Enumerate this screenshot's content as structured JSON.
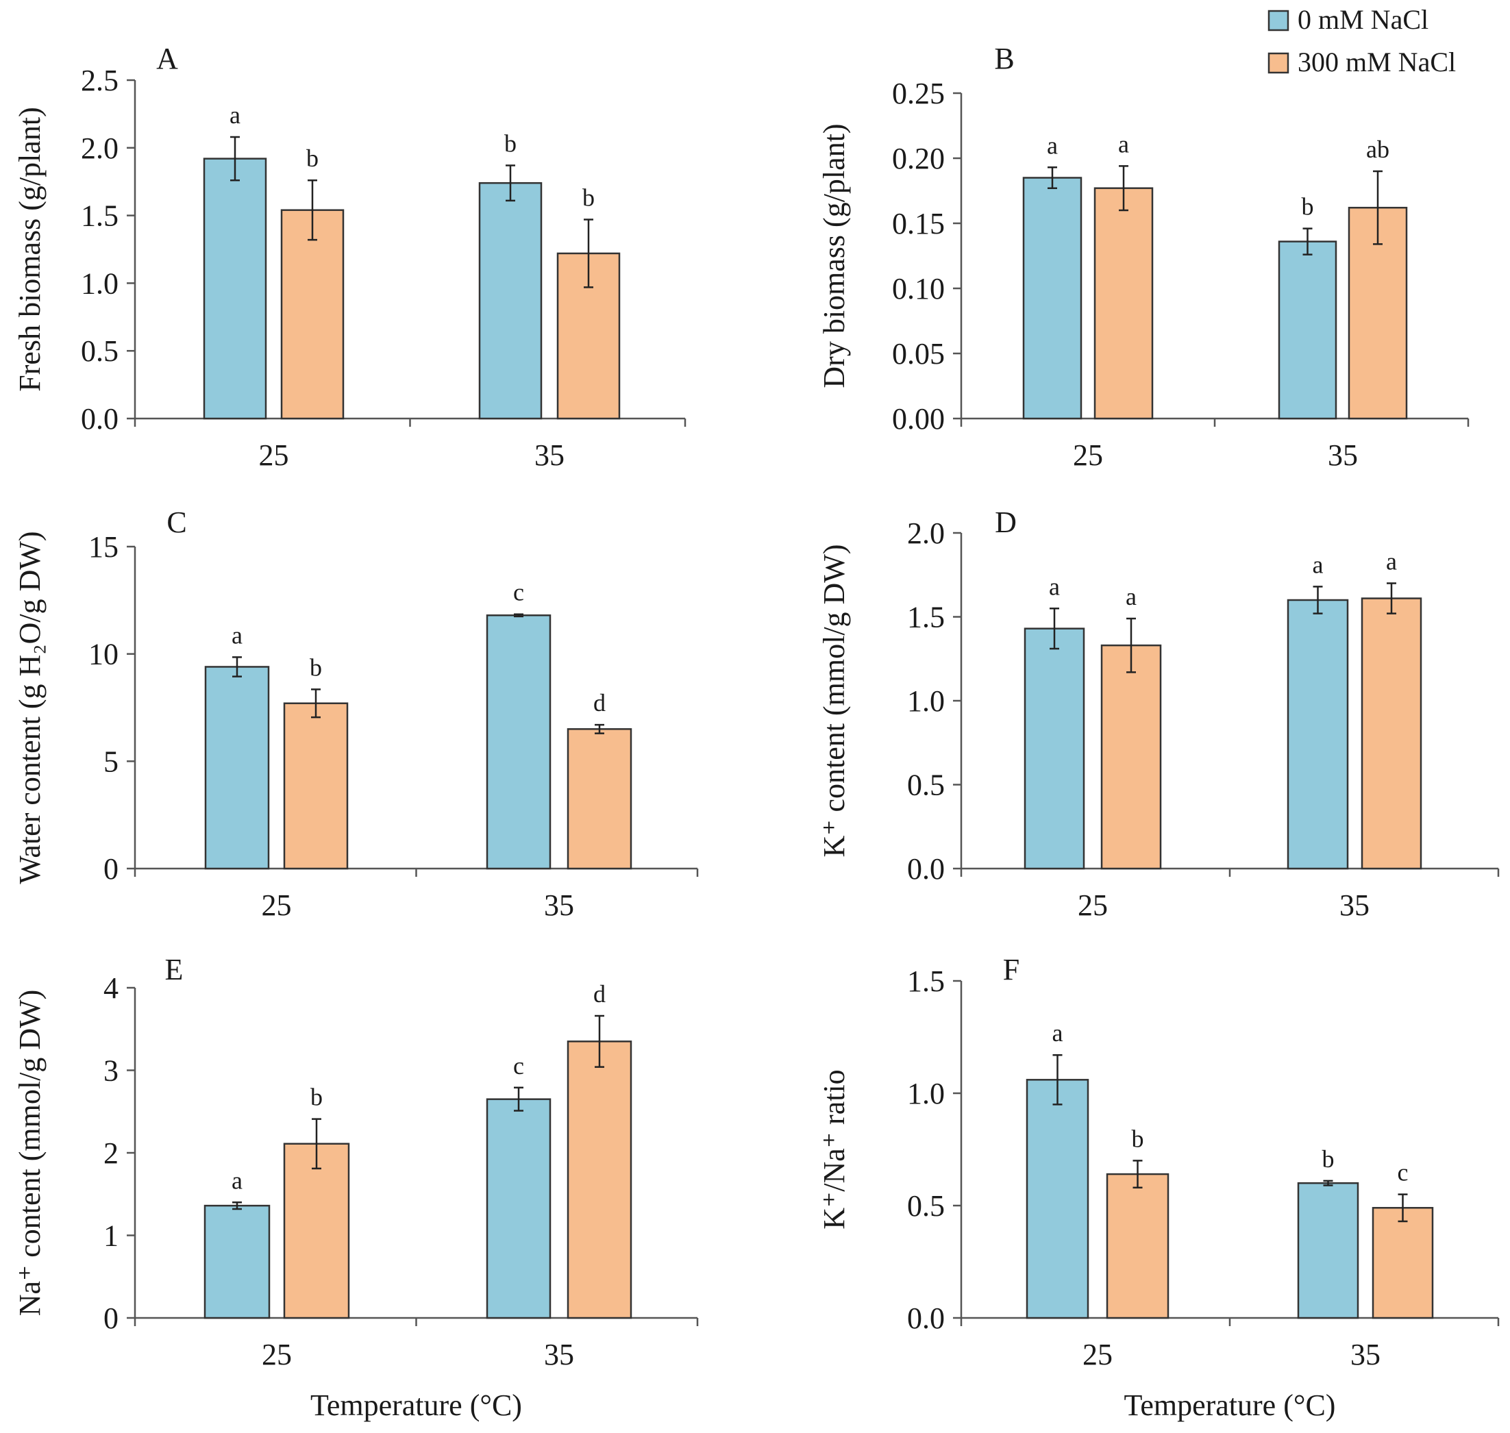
{
  "legend": {
    "entries": [
      {
        "label": "0 mM NaCl",
        "color": "#92cadc"
      },
      {
        "label": "300 mM NaCl",
        "color": "#f7bd8e"
      }
    ]
  },
  "chart_data": [
    {
      "type": "bar",
      "panel": "A",
      "ylabel": "Fresh biomass (g/plant)",
      "xlabel": "",
      "categories": [
        "25",
        "35"
      ],
      "ylim": [
        0,
        2.5
      ],
      "yticks": [
        "0.0",
        "0.5",
        "1.0",
        "1.5",
        "2.0",
        "2.5"
      ],
      "series": [
        {
          "name": "0 mM NaCl",
          "values": [
            1.92,
            1.74
          ],
          "errors": [
            0.16,
            0.13
          ],
          "letters": [
            "a",
            "b"
          ]
        },
        {
          "name": "300 mM NaCl",
          "values": [
            1.54,
            1.22
          ],
          "errors": [
            0.22,
            0.25
          ],
          "letters": [
            "b",
            "b"
          ]
        }
      ]
    },
    {
      "type": "bar",
      "panel": "B",
      "ylabel": "Dry biomass (g/plant)",
      "xlabel": "",
      "categories": [
        "25",
        "35"
      ],
      "ylim": [
        0,
        0.25
      ],
      "yticks": [
        "0.00",
        "0.05",
        "0.10",
        "0.15",
        "0.20",
        "0.25"
      ],
      "series": [
        {
          "name": "0 mM NaCl",
          "values": [
            0.185,
            0.136
          ],
          "errors": [
            0.008,
            0.01
          ],
          "letters": [
            "a",
            "b"
          ]
        },
        {
          "name": "300 mM NaCl",
          "values": [
            0.177,
            0.162
          ],
          "errors": [
            0.017,
            0.028
          ],
          "letters": [
            "a",
            "ab"
          ]
        }
      ]
    },
    {
      "type": "bar",
      "panel": "C",
      "ylabel": "Water content (g H₂O/g DW)",
      "xlabel": "",
      "categories": [
        "25",
        "35"
      ],
      "ylim": [
        0,
        15
      ],
      "yticks": [
        "0",
        "5",
        "10",
        "15"
      ],
      "series": [
        {
          "name": "0 mM NaCl",
          "values": [
            9.4,
            11.8
          ],
          "errors": [
            0.45,
            0.05
          ],
          "letters": [
            "a",
            "c"
          ]
        },
        {
          "name": "300 mM NaCl",
          "values": [
            7.7,
            6.5
          ],
          "errors": [
            0.65,
            0.2
          ],
          "letters": [
            "b",
            "d"
          ]
        }
      ]
    },
    {
      "type": "bar",
      "panel": "D",
      "ylabel": "K⁺ content (mmol/g DW)",
      "xlabel": "",
      "categories": [
        "25",
        "35"
      ],
      "ylim": [
        0,
        2.0
      ],
      "yticks": [
        "0.0",
        "0.5",
        "1.0",
        "1.5",
        "2.0"
      ],
      "series": [
        {
          "name": "0 mM NaCl",
          "values": [
            1.43,
            1.6
          ],
          "errors": [
            0.12,
            0.08
          ],
          "letters": [
            "a",
            "a"
          ]
        },
        {
          "name": "300 mM NaCl",
          "values": [
            1.33,
            1.61
          ],
          "errors": [
            0.16,
            0.09
          ],
          "letters": [
            "a",
            "a"
          ]
        }
      ]
    },
    {
      "type": "bar",
      "panel": "E",
      "ylabel": "Na⁺ content (mmol/g DW)",
      "xlabel": "Temperature (°C)",
      "categories": [
        "25",
        "35"
      ],
      "ylim": [
        0,
        4
      ],
      "yticks": [
        "0",
        "1",
        "2",
        "3",
        "4"
      ],
      "series": [
        {
          "name": "0 mM NaCl",
          "values": [
            1.36,
            2.65
          ],
          "errors": [
            0.04,
            0.14
          ],
          "letters": [
            "a",
            "c"
          ]
        },
        {
          "name": "300 mM NaCl",
          "values": [
            2.11,
            3.35
          ],
          "errors": [
            0.3,
            0.31
          ],
          "letters": [
            "b",
            "d"
          ]
        }
      ]
    },
    {
      "type": "bar",
      "panel": "F",
      "ylabel": "K⁺/Na⁺ ratio",
      "xlabel": "Temperature (°C)",
      "categories": [
        "25",
        "35"
      ],
      "ylim": [
        0,
        1.5
      ],
      "yticks": [
        "0.0",
        "0.5",
        "1.0",
        "1.5"
      ],
      "series": [
        {
          "name": "0 mM NaCl",
          "values": [
            1.06,
            0.6
          ],
          "errors": [
            0.11,
            0.01
          ],
          "letters": [
            "a",
            "b"
          ]
        },
        {
          "name": "300 mM NaCl",
          "values": [
            0.64,
            0.49
          ],
          "errors": [
            0.06,
            0.06
          ],
          "letters": [
            "b",
            "c"
          ]
        }
      ]
    }
  ]
}
